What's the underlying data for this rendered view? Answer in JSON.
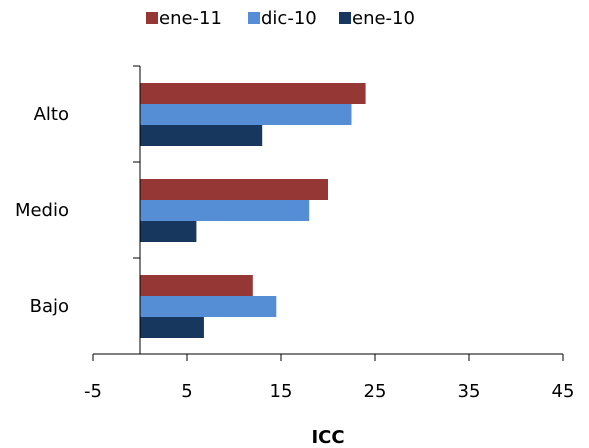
{
  "chart_data": {
    "type": "bar",
    "orientation": "horizontal",
    "categories": [
      "Alto",
      "Medio",
      "Bajo"
    ],
    "series": [
      {
        "name": "ene-11",
        "values": [
          24,
          20,
          12
        ],
        "color": "#953735"
      },
      {
        "name": "dic-10",
        "values": [
          22.5,
          18,
          14.5
        ],
        "color": "#558ed5"
      },
      {
        "name": "ene-10",
        "values": [
          13,
          6,
          6.8
        ],
        "color": "#17375e"
      }
    ],
    "xlabel": "ICC",
    "xlim": [
      -5,
      45
    ],
    "xticks": [
      -5,
      5,
      15,
      25,
      35,
      45
    ],
    "xtick_labels": [
      "-5",
      "5",
      "15",
      "25",
      "35",
      "45"
    ],
    "legend_position": "top",
    "grid": false
  }
}
